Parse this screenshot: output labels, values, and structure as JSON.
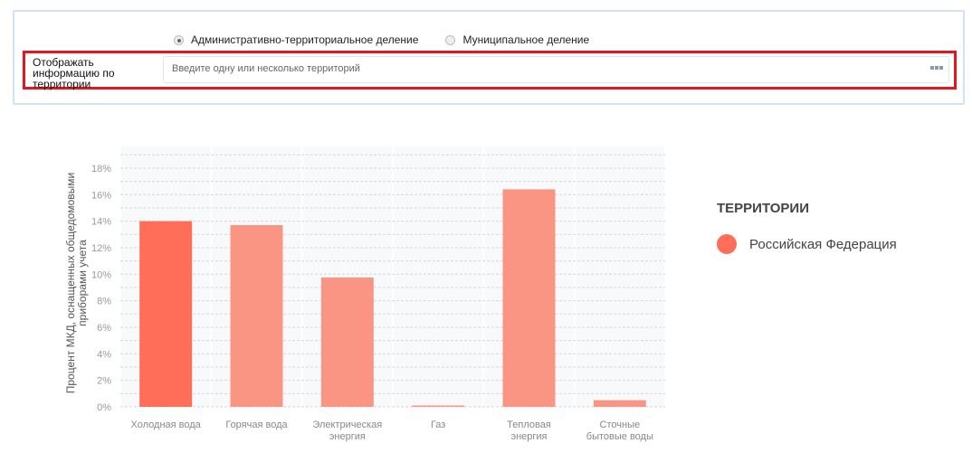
{
  "filters": {
    "radio_options": [
      {
        "label": "Административно-территориальное деление",
        "selected": true
      },
      {
        "label": "Муниципальное деление",
        "selected": false
      }
    ],
    "territory_label": "Отображать информацию по территории",
    "territory_placeholder": "Введите одну или несколько территорий"
  },
  "legend": {
    "title": "ТЕРРИТОРИИ",
    "items": [
      {
        "label": "Российская Федерация",
        "color": "#ff6e59"
      }
    ]
  },
  "chart_data": {
    "type": "bar",
    "ylabel": "Процент МКД, оснащенных общедомовыми приборами учета",
    "categories": [
      "Холодная вода",
      "Горячая вода",
      "Электрическая энергия",
      "Газ",
      "Тепловая энергия",
      "Сточные бытовые воды"
    ],
    "category_lines": [
      [
        "Холодная вода"
      ],
      [
        "Горячая вода"
      ],
      [
        "Электрическая",
        "энергия"
      ],
      [
        "Газ"
      ],
      [
        "Тепловая",
        "энергия"
      ],
      [
        "Сточные",
        "бытовые воды"
      ]
    ],
    "series": [
      {
        "name": "Российская Федерация",
        "values": [
          14.0,
          13.7,
          9.75,
          0.1,
          16.4,
          0.5
        ]
      }
    ],
    "ylim": [
      0,
      19
    ],
    "yticks": [
      "0%",
      "2%",
      "4%",
      "6%",
      "8%",
      "10%",
      "12%",
      "14%",
      "16%",
      "18%"
    ],
    "grid": true,
    "colors": {
      "highlight": "#ff6e59",
      "normal": "#fa9584"
    },
    "legend_position": "right"
  }
}
